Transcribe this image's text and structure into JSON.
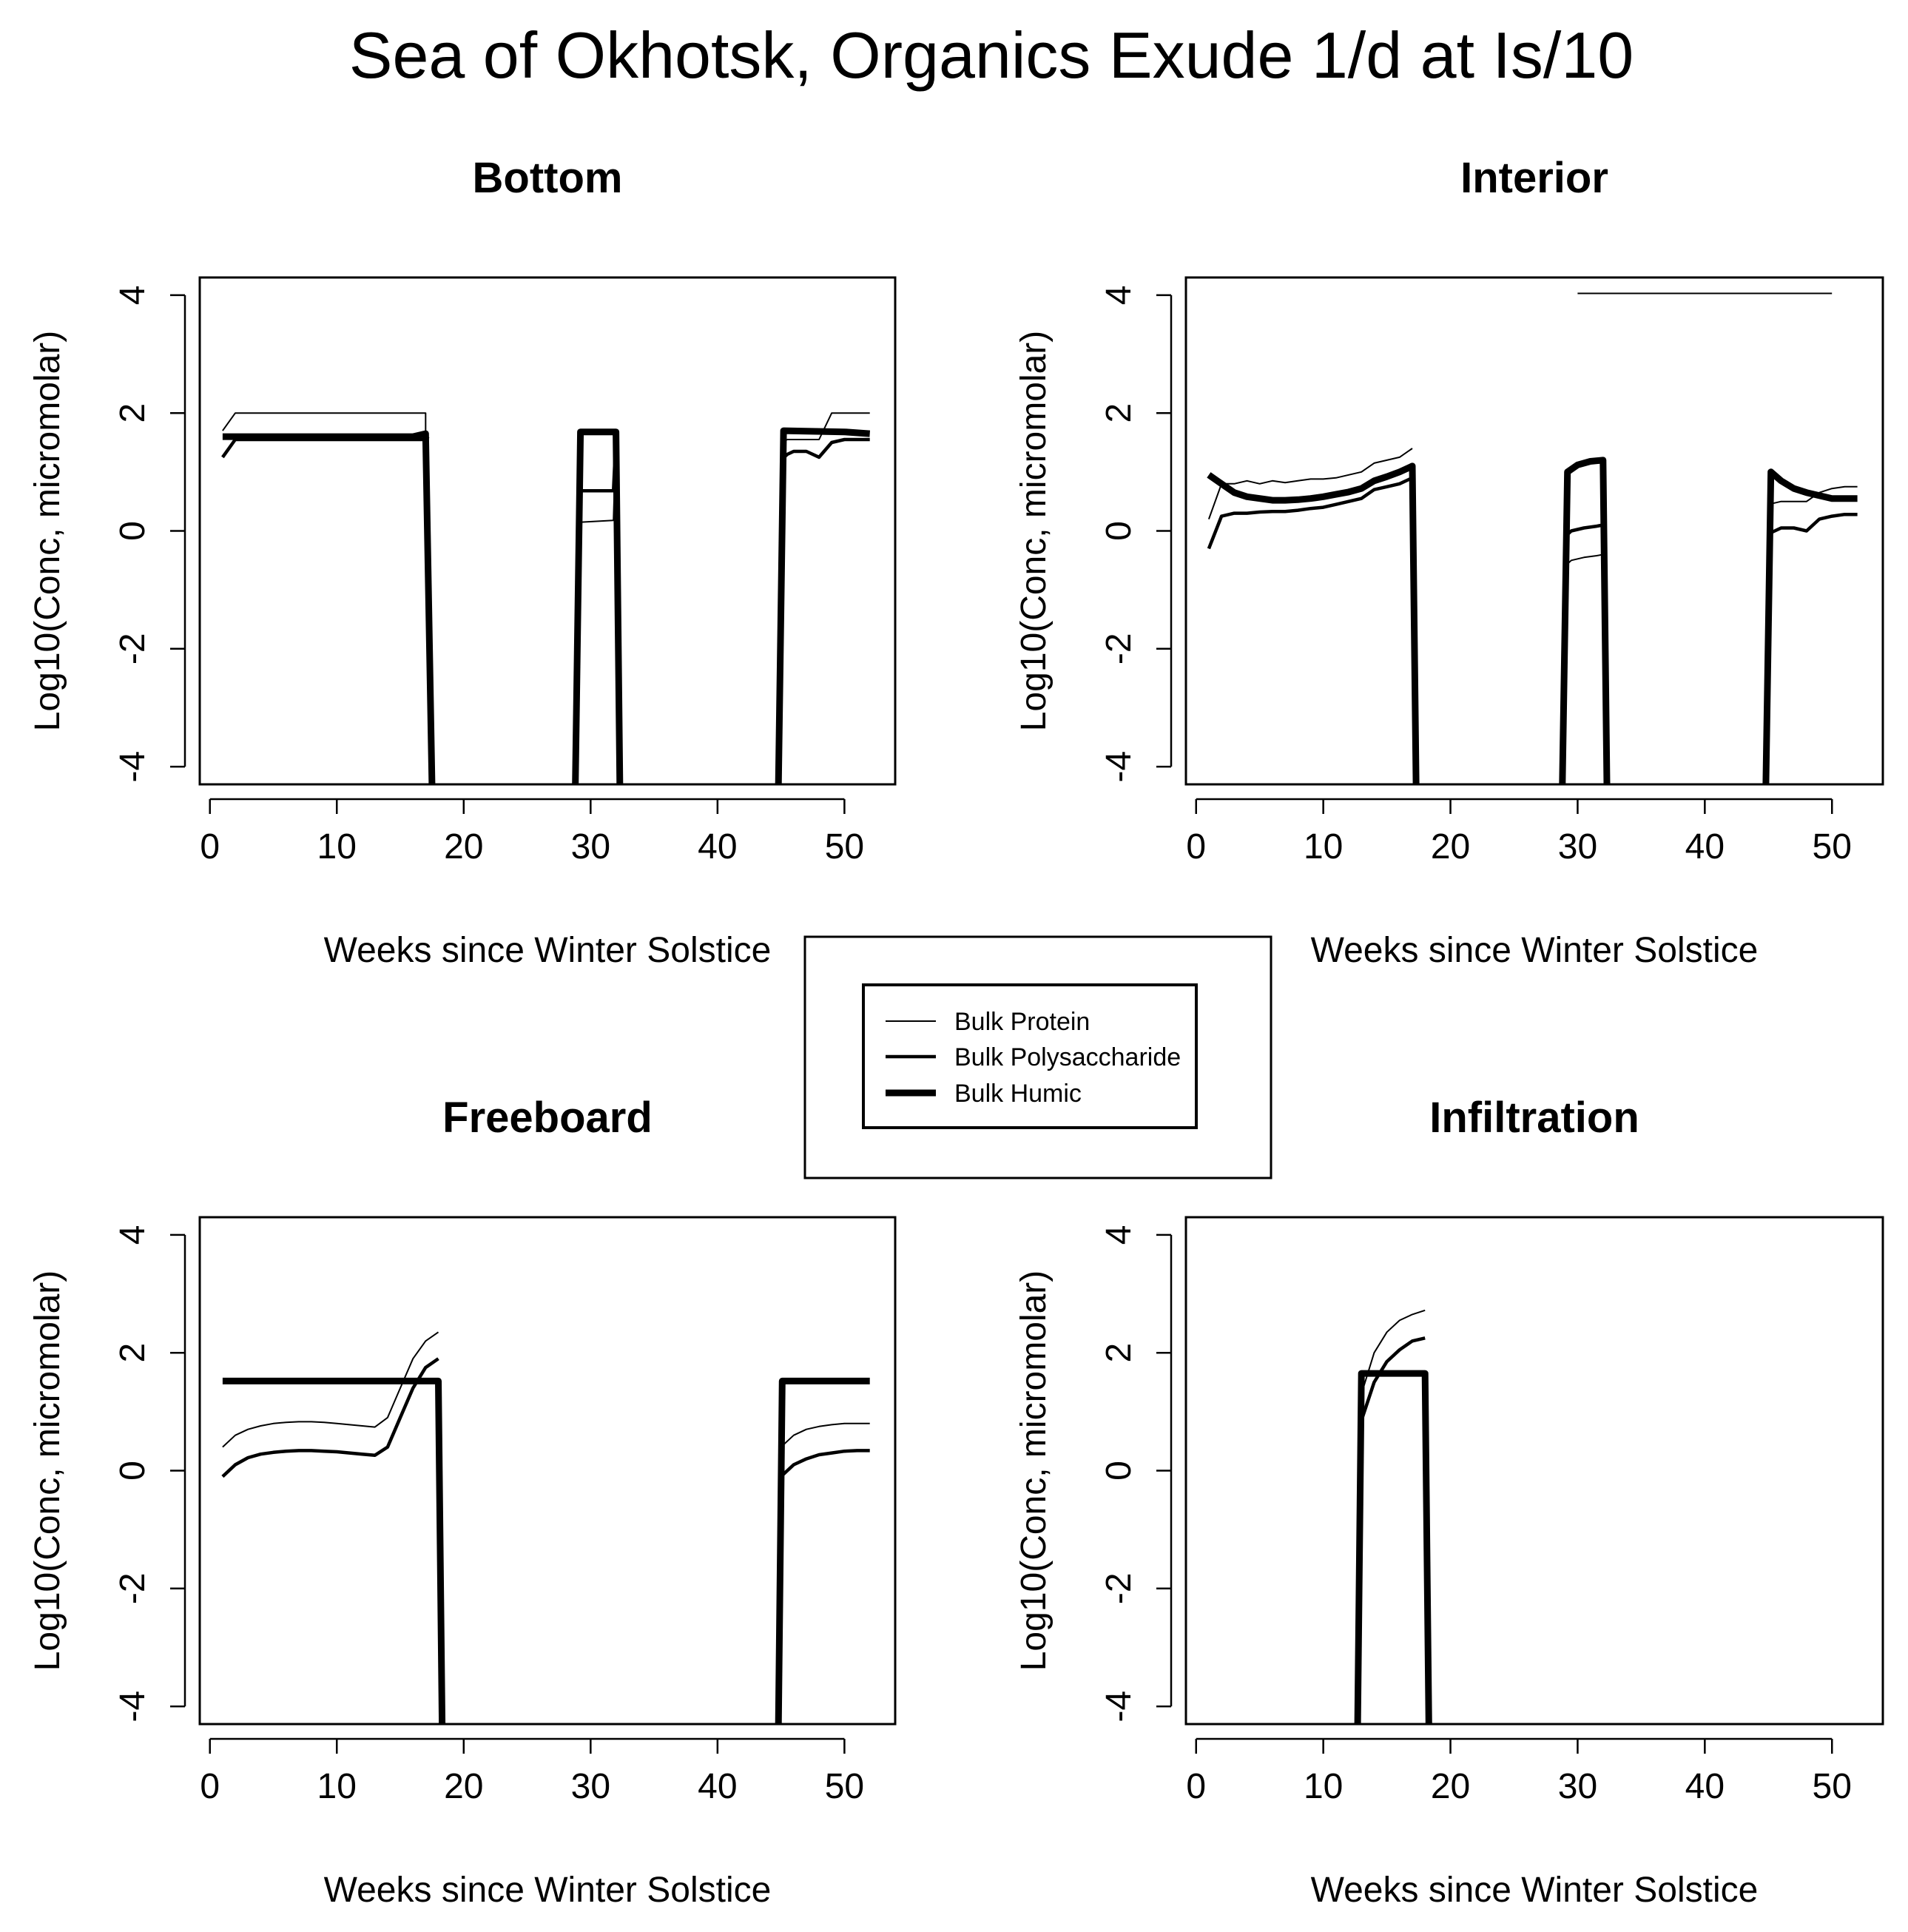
{
  "figure": {
    "title": "Sea of Okhotsk, Organics Exude 1/d at Is/10"
  },
  "legend": {
    "entries": [
      {
        "label": "Bulk Protein",
        "weight": "thin"
      },
      {
        "label": "Bulk Polysaccharide",
        "weight": "medium"
      },
      {
        "label": "Bulk Humic",
        "weight": "thick"
      }
    ]
  },
  "colors": {
    "line": "#000000",
    "background": "#ffffff"
  },
  "chart_data": [
    {
      "type": "line",
      "title": "Bottom",
      "xlabel": "Weeks since Winter Solstice",
      "ylabel": "Log10(Conc, micromolar)",
      "xlim": [
        -0.8,
        54
      ],
      "ylim": [
        -4.3,
        4.3
      ],
      "xticks": [
        0,
        10,
        20,
        30,
        40,
        50
      ],
      "yticks": [
        -4,
        -2,
        0,
        2,
        4
      ],
      "series": [
        {
          "name": "Bulk Protein",
          "segments": [
            {
              "x": [
                1,
                2,
                17,
                17
              ],
              "y": [
                1.7,
                2.0,
                2.0,
                1.6
              ]
            },
            {
              "x": [
                29,
                29.3,
                31.8,
                32
              ],
              "y": [
                0.15,
                0.15,
                0.18,
                1.6
              ]
            },
            {
              "x": [
                45,
                45.5,
                48,
                49,
                52
              ],
              "y": [
                1.5,
                1.55,
                1.55,
                2.0,
                2.0
              ]
            }
          ]
        },
        {
          "name": "Bulk Polysaccharide",
          "segments": [
            {
              "x": [
                1,
                2,
                16,
                17,
                17.2
              ],
              "y": [
                1.25,
                1.55,
                1.55,
                1.55,
                1.6
              ]
            },
            {
              "x": [
                29,
                29.3,
                31.8,
                32
              ],
              "y": [
                0.65,
                0.68,
                0.68,
                1.6
              ]
            },
            {
              "x": [
                45,
                45.5,
                46,
                47,
                48,
                49,
                50,
                52
              ],
              "y": [
                1.2,
                1.3,
                1.35,
                1.35,
                1.25,
                1.5,
                1.55,
                1.55
              ]
            }
          ]
        },
        {
          "name": "Bulk Humic",
          "segments": [
            {
              "x": [
                1,
                16,
                17,
                17.5
              ],
              "y": [
                1.6,
                1.6,
                1.65,
                -4.3
              ]
            },
            {
              "x": [
                28.8,
                29.2,
                32,
                32.3
              ],
              "y": [
                -4.3,
                1.68,
                1.68,
                -4.3
              ]
            },
            {
              "x": [
                44.8,
                45.2,
                50,
                52
              ],
              "y": [
                -4.3,
                1.7,
                1.68,
                1.65
              ]
            }
          ]
        }
      ]
    },
    {
      "type": "line",
      "title": "Interior",
      "xlabel": "Weeks since Winter Solstice",
      "ylabel": "Log10(Conc, micromolar)",
      "xlim": [
        -0.8,
        54
      ],
      "ylim": [
        -4.3,
        4.3
      ],
      "xticks": [
        0,
        10,
        20,
        30,
        40,
        50
      ],
      "yticks": [
        -4,
        -2,
        0,
        2,
        4
      ],
      "series": [
        {
          "name": "Bulk Protein",
          "segments": [
            {
              "x": [
                1,
                2,
                3,
                4,
                5,
                6,
                7,
                8,
                9,
                10,
                11,
                12,
                13,
                14,
                15,
                16,
                17
              ],
              "y": [
                0.2,
                0.8,
                0.8,
                0.85,
                0.8,
                0.85,
                0.82,
                0.85,
                0.88,
                0.88,
                0.9,
                0.95,
                1.0,
                1.15,
                1.2,
                1.25,
                1.4
              ]
            },
            {
              "x": [
                29,
                29.5,
                30.5,
                31.5,
                32
              ],
              "y": [
                -0.6,
                -0.5,
                -0.45,
                -0.42,
                -0.4
              ]
            },
            {
              "x": [
                45,
                46,
                47,
                48,
                49,
                50,
                51,
                52
              ],
              "y": [
                0.45,
                0.5,
                0.5,
                0.5,
                0.65,
                0.72,
                0.75,
                0.75
              ]
            },
            {
              "x": [
                30,
                50
              ],
              "y": [
                4.03,
                4.03
              ]
            }
          ]
        },
        {
          "name": "Bulk Polysaccharide",
          "segments": [
            {
              "x": [
                1,
                2,
                3,
                4,
                5,
                6,
                7,
                8,
                9,
                10,
                11,
                12,
                13,
                14,
                15,
                16,
                17
              ],
              "y": [
                -0.3,
                0.25,
                0.3,
                0.3,
                0.32,
                0.33,
                0.33,
                0.35,
                0.38,
                0.4,
                0.45,
                0.5,
                0.55,
                0.7,
                0.75,
                0.8,
                0.9
              ]
            },
            {
              "x": [
                29,
                29.5,
                30.5,
                31.5,
                32
              ],
              "y": [
                -0.1,
                0.0,
                0.05,
                0.08,
                0.1
              ]
            },
            {
              "x": [
                45,
                46,
                47,
                48,
                49,
                50,
                51,
                52
              ],
              "y": [
                -0.05,
                0.05,
                0.05,
                0.0,
                0.2,
                0.25,
                0.28,
                0.28
              ]
            }
          ]
        },
        {
          "name": "Bulk Humic",
          "segments": [
            {
              "x": [
                1,
                2,
                3,
                4,
                5,
                6,
                7,
                8,
                9,
                10,
                11,
                12,
                13,
                14,
                15,
                16,
                17,
                17.3
              ],
              "y": [
                0.95,
                0.8,
                0.65,
                0.58,
                0.55,
                0.52,
                0.52,
                0.53,
                0.55,
                0.58,
                0.62,
                0.66,
                0.72,
                0.85,
                0.92,
                1.0,
                1.1,
                -4.3
              ]
            },
            {
              "x": [
                28.8,
                29.2,
                30,
                31,
                32,
                32.3
              ],
              "y": [
                -4.3,
                1.0,
                1.12,
                1.18,
                1.2,
                -4.3
              ]
            },
            {
              "x": [
                44.8,
                45.2,
                46,
                47,
                48,
                49,
                50,
                51,
                52
              ],
              "y": [
                -4.3,
                1.0,
                0.85,
                0.72,
                0.65,
                0.6,
                0.55,
                0.55,
                0.55
              ]
            }
          ]
        }
      ]
    },
    {
      "type": "line",
      "title": "Freeboard",
      "xlabel": "Weeks since Winter Solstice",
      "ylabel": "Log10(Conc, micromolar)",
      "xlim": [
        -0.8,
        54
      ],
      "ylim": [
        -4.3,
        4.3
      ],
      "xticks": [
        0,
        10,
        20,
        30,
        40,
        50
      ],
      "yticks": [
        -4,
        -2,
        0,
        2,
        4
      ],
      "series": [
        {
          "name": "Bulk Protein",
          "segments": [
            {
              "x": [
                1,
                2,
                3,
                4,
                5,
                6,
                7,
                8,
                9,
                10,
                11,
                12,
                13,
                14,
                15,
                16,
                17,
                18
              ],
              "y": [
                0.4,
                0.6,
                0.7,
                0.76,
                0.8,
                0.82,
                0.83,
                0.83,
                0.82,
                0.8,
                0.78,
                0.76,
                0.74,
                0.9,
                1.4,
                1.9,
                2.2,
                2.35
              ]
            },
            {
              "x": [
                45,
                46,
                47,
                48,
                49,
                50,
                51,
                52
              ],
              "y": [
                0.4,
                0.6,
                0.7,
                0.75,
                0.78,
                0.8,
                0.8,
                0.8
              ]
            }
          ]
        },
        {
          "name": "Bulk Polysaccharide",
          "segments": [
            {
              "x": [
                1,
                2,
                3,
                4,
                5,
                6,
                7,
                8,
                9,
                10,
                11,
                12,
                13,
                14,
                15,
                16,
                17,
                18
              ],
              "y": [
                -0.1,
                0.1,
                0.22,
                0.28,
                0.31,
                0.33,
                0.34,
                0.34,
                0.33,
                0.32,
                0.3,
                0.28,
                0.26,
                0.4,
                0.9,
                1.4,
                1.75,
                1.9
              ]
            },
            {
              "x": [
                45,
                46,
                47,
                48,
                49,
                50,
                51,
                52
              ],
              "y": [
                -0.1,
                0.1,
                0.2,
                0.27,
                0.3,
                0.33,
                0.34,
                0.34
              ]
            }
          ]
        },
        {
          "name": "Bulk Humic",
          "segments": [
            {
              "x": [
                1,
                18,
                18.3
              ],
              "y": [
                1.52,
                1.52,
                -4.3
              ]
            },
            {
              "x": [
                44.8,
                45.1,
                52
              ],
              "y": [
                -4.3,
                1.52,
                1.52
              ]
            }
          ]
        }
      ]
    },
    {
      "type": "line",
      "title": "Infiltration",
      "xlabel": "Weeks since Winter Solstice",
      "ylabel": "Log10(Conc, micromolar)",
      "xlim": [
        -0.8,
        54
      ],
      "ylim": [
        -4.3,
        4.3
      ],
      "xticks": [
        0,
        10,
        20,
        30,
        40,
        50
      ],
      "yticks": [
        -4,
        -2,
        0,
        2,
        4
      ],
      "series": [
        {
          "name": "Bulk Protein",
          "segments": [
            {
              "x": [
                13,
                14,
                15,
                16,
                17,
                18
              ],
              "y": [
                1.3,
                2.0,
                2.35,
                2.55,
                2.65,
                2.72
              ]
            }
          ]
        },
        {
          "name": "Bulk Polysaccharide",
          "segments": [
            {
              "x": [
                13,
                14,
                15,
                16,
                17,
                18
              ],
              "y": [
                0.85,
                1.5,
                1.85,
                2.05,
                2.2,
                2.25
              ]
            }
          ]
        },
        {
          "name": "Bulk Humic",
          "segments": [
            {
              "x": [
                12.7,
                13.0,
                18,
                18.3
              ],
              "y": [
                -4.3,
                1.65,
                1.65,
                -4.3
              ]
            }
          ]
        }
      ]
    }
  ]
}
